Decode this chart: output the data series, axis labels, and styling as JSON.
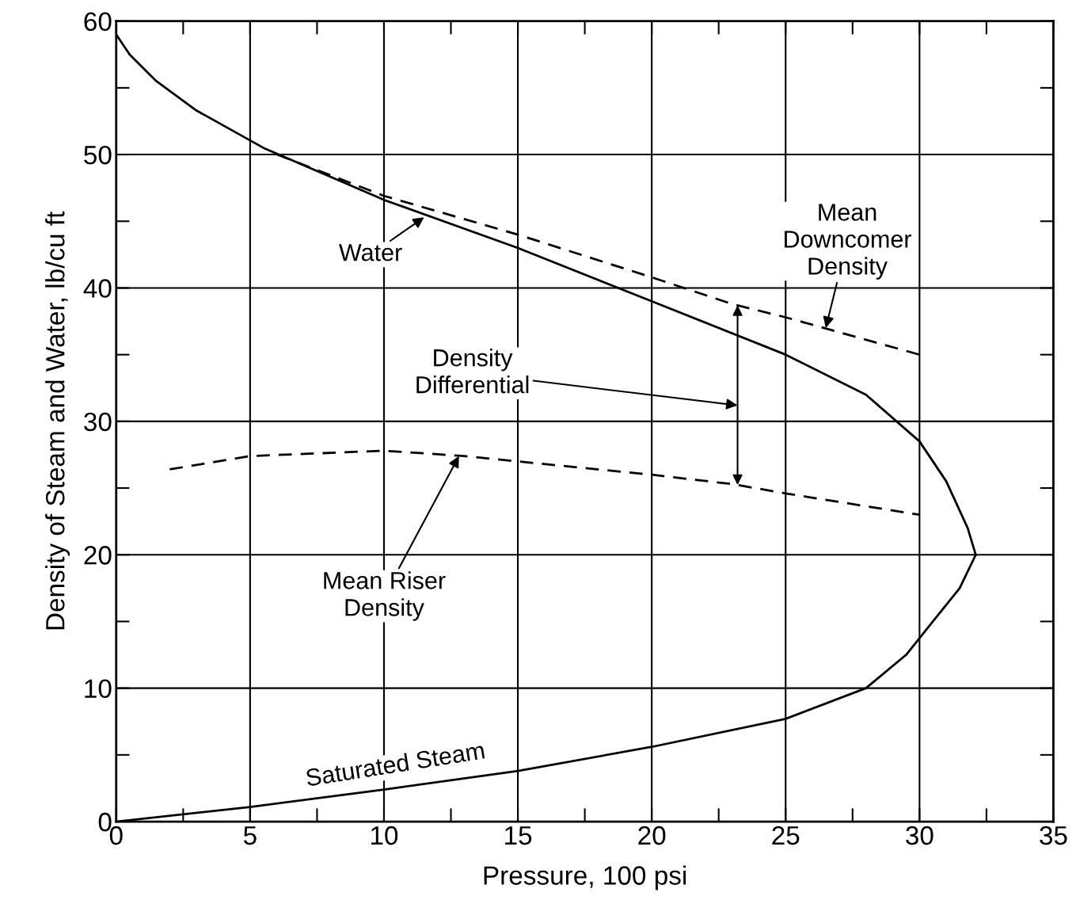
{
  "chart_data": {
    "type": "line",
    "xlabel": "Pressure, 100 psi",
    "ylabel": "Density of Steam and Water, lb/cu ft",
    "xlim": [
      0,
      35
    ],
    "ylim": [
      0,
      60
    ],
    "xticks": [
      0,
      5,
      10,
      15,
      20,
      25,
      30,
      35
    ],
    "yticks": [
      0,
      10,
      20,
      30,
      40,
      50,
      60
    ],
    "grid": true,
    "legend": false,
    "marker": "none",
    "series": [
      {
        "color": "#000000",
        "line_style": "solid",
        "x": [
          0,
          0.5,
          1.5,
          3,
          5.5,
          10,
          15,
          20,
          25,
          28,
          30,
          31,
          31.8,
          32.1
        ],
        "values": [
          59,
          57.5,
          55.5,
          53.3,
          50.5,
          46.6,
          43,
          39,
          35,
          32,
          28.5,
          25.5,
          22,
          20
        ]
      },
      {
        "color": "#000000",
        "line_style": "solid",
        "x": [
          0,
          5,
          10,
          15,
          20,
          25,
          28,
          29.5,
          30.5,
          31.5,
          32.1
        ],
        "values": [
          0,
          1.1,
          2.4,
          3.8,
          5.6,
          7.7,
          10,
          12.5,
          15,
          17.5,
          20
        ]
      },
      {
        "color": "#000000",
        "line_style": "dashed",
        "x": [
          6,
          10,
          15,
          20,
          23,
          25,
          30
        ],
        "values": [
          50,
          46.9,
          44,
          40.8,
          38.8,
          37.8,
          35
        ]
      },
      {
        "color": "#000000",
        "line_style": "dashed",
        "x": [
          2,
          5,
          10,
          13,
          15,
          20,
          23,
          25,
          30
        ],
        "values": [
          26.4,
          27.4,
          27.8,
          27.4,
          27,
          26,
          25.3,
          24.6,
          23
        ]
      }
    ],
    "annotations": [
      {
        "text": "Water",
        "x": 11.5,
        "y": 45.3
      },
      {
        "text": "Mean\nDowncomer\nDensity",
        "x": 26.5,
        "y": 37
      },
      "Density\nDifferential",
      {
        "text": "Mean Riser\nDensity",
        "x": 12.8,
        "y": 27.4
      },
      {
        "text": "Saturated Steam",
        "x": 10.5,
        "y": 2.5
      }
    ]
  }
}
